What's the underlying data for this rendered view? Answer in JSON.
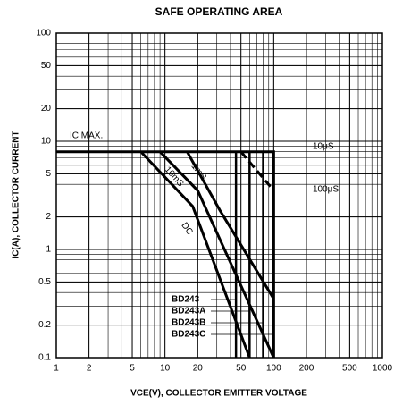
{
  "chart_data": {
    "type": "line",
    "title": "SAFE OPERATING AREA",
    "x_label": "VCE(V), COLLECTOR EMITTER VOLTAGE",
    "y_label": "IC(A), COLLECTOR CURRENT",
    "log_x": true,
    "log_y": true,
    "grid": true,
    "color": "#000000",
    "xlim": [
      1,
      1000
    ],
    "xticks": [
      1,
      2,
      5,
      10,
      20,
      50,
      100,
      200,
      500,
      1000
    ],
    "ylim": [
      0.1,
      100
    ],
    "yticks": [
      100,
      50,
      20,
      10,
      5,
      2,
      1,
      0.5,
      0.2,
      0.1
    ],
    "series": [
      {
        "name": "IC MAX.",
        "x": [
          1,
          50
        ],
        "values": [
          8,
          8
        ]
      },
      {
        "name": "10μS",
        "x": [
          50,
          100,
          100
        ],
        "values": [
          8,
          8,
          0.1
        ]
      },
      {
        "name": "100μS",
        "x": [
          50,
          100
        ],
        "values": [
          8,
          3.5
        ],
        "dashed": true
      },
      {
        "name": "1mS",
        "x": [
          16,
          32,
          100
        ],
        "values": [
          8,
          2.3,
          0.35
        ]
      },
      {
        "name": "10mS",
        "x": [
          9,
          20,
          100
        ],
        "values": [
          8,
          3.5,
          0.1
        ]
      },
      {
        "name": "DC",
        "x": [
          6,
          18,
          60
        ],
        "values": [
          8,
          2.5,
          0.1
        ]
      }
    ],
    "limits": [
      {
        "name": "BD243",
        "x": 45
      },
      {
        "name": "BD243A",
        "x": 60
      },
      {
        "name": "BD243B",
        "x": 80
      },
      {
        "name": "BD243C",
        "x": 100
      }
    ]
  }
}
